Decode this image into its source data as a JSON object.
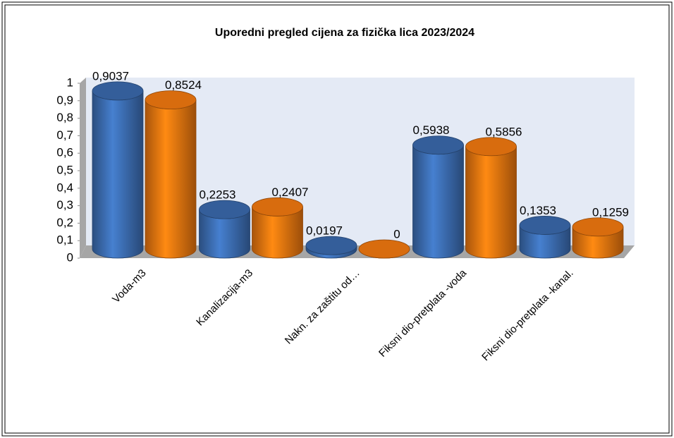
{
  "chart_data": {
    "type": "bar3d",
    "title": "Uporedni pregled cijena za fizička lica 2023/2024",
    "categories": [
      "Voda-m3",
      "Kanalizacija-m3",
      "Nakn. za zaštitu od…",
      "Fiksni dio-pretplata -voda",
      "Fiksni dio-pretplata -kanal."
    ],
    "series": [
      {
        "color": "#3d6fb5",
        "values": [
          0.9037,
          0.2253,
          0.0197,
          0.5938,
          0.1353
        ],
        "value_labels": [
          "0,9037",
          "0,2253",
          "0,0197",
          "0,5938",
          "0,1353"
        ]
      },
      {
        "color": "#f07810",
        "values": [
          0.8524,
          0.2407,
          0,
          0.5856,
          0.1259
        ],
        "value_labels": [
          "0,8524",
          "0,2407",
          "0",
          "0,5856",
          "0,1259"
        ]
      }
    ],
    "ylim": [
      0,
      1
    ],
    "yticks": [
      0,
      {
        "value": 0.1,
        "label": "0,1"
      },
      {
        "value": 0.2,
        "label": "0,2"
      },
      {
        "value": 0.3,
        "label": "0,3"
      },
      {
        "value": 0.4,
        "label": "0,4"
      },
      {
        "value": 0.5,
        "label": "0,5"
      },
      {
        "value": 0.6,
        "label": "0,6"
      },
      {
        "value": 0.7,
        "label": "0,7"
      },
      {
        "value": 0.8,
        "label": "0,8"
      },
      {
        "value": 0.9,
        "label": "0,9"
      },
      1
    ]
  }
}
